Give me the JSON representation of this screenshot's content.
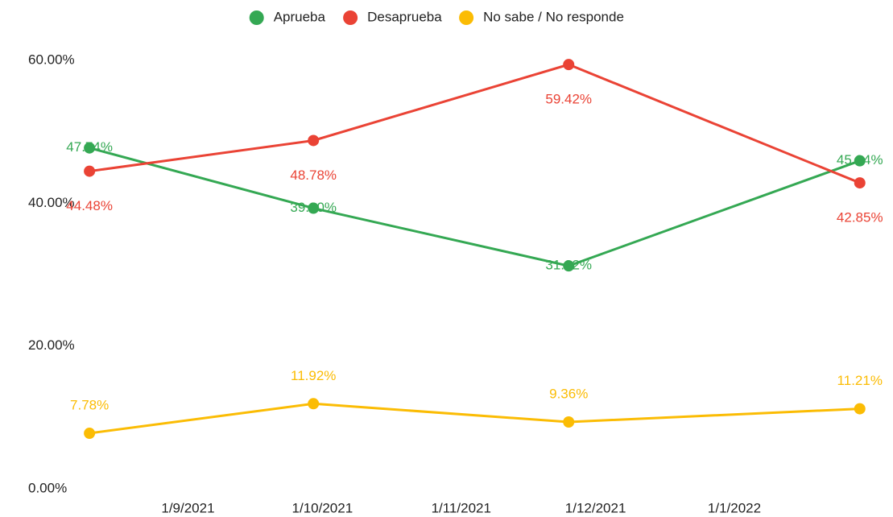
{
  "chart_data": {
    "type": "line",
    "x": [
      "2021-08-10",
      "2021-09-29",
      "2021-11-25",
      "2022-01-29"
    ],
    "series": [
      {
        "name": "Aprueba",
        "color": "#34a853",
        "values": [
          47.74,
          39.3,
          31.22,
          45.94
        ],
        "value_labels": [
          "47.74%",
          "39.30%",
          "31.22%",
          "45.94%"
        ]
      },
      {
        "name": "Desaprueba",
        "color": "#ea4335",
        "values": [
          44.48,
          48.78,
          59.42,
          42.85
        ],
        "value_labels": [
          "44.48%",
          "48.78%",
          "59.42%",
          "42.85%"
        ]
      },
      {
        "name": "No sabe / No responde",
        "color": "#fbbc04",
        "values": [
          7.78,
          11.92,
          9.36,
          11.21
        ],
        "value_labels": [
          "7.78%",
          "11.92%",
          "9.36%",
          "11.21%"
        ]
      }
    ],
    "xlim": [
      "2021-08-08",
      "2022-02-02"
    ],
    "xticks": [
      {
        "value": "2021-09-01",
        "label": "1/9/2021"
      },
      {
        "value": "2021-10-01",
        "label": "1/10/2021"
      },
      {
        "value": "2021-11-01",
        "label": "1/11/2021"
      },
      {
        "value": "2021-12-01",
        "label": "1/12/2021"
      },
      {
        "value": "2022-01-01",
        "label": "1/1/2022"
      }
    ],
    "ylim": [
      0,
      60
    ],
    "yticks": [
      {
        "value": 0,
        "label": "0.00%"
      },
      {
        "value": 20,
        "label": "20.00%"
      },
      {
        "value": 40,
        "label": "40.00%"
      },
      {
        "value": 60,
        "label": "60.00%"
      }
    ],
    "legend": "top"
  }
}
